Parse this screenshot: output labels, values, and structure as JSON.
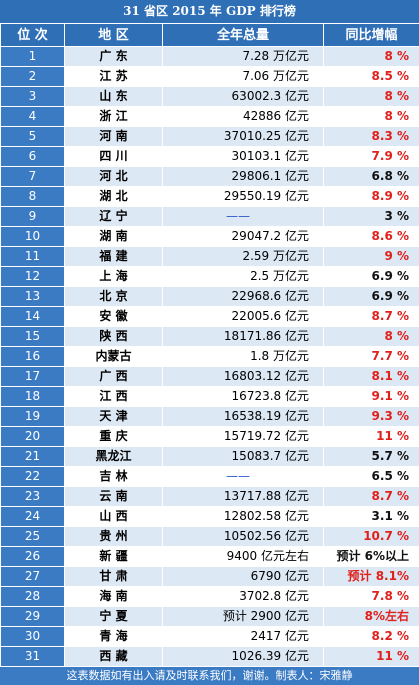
{
  "header": {
    "title": "31 省区 2015 年 GDP 排行榜",
    "columns": [
      "位 次",
      "地 区",
      "全年总量",
      "同比增幅"
    ]
  },
  "rows": [
    {
      "rank": "1",
      "region": "广 东",
      "total": "7.28 万亿元",
      "growth": "8 %",
      "growth_color": "#e0201b"
    },
    {
      "rank": "2",
      "region": "江 苏",
      "total": "7.06 万亿元",
      "growth": "8.5 %",
      "growth_color": "#e0201b"
    },
    {
      "rank": "3",
      "region": "山 东",
      "total": "63002.3 亿元",
      "growth": "8 %",
      "growth_color": "#e0201b"
    },
    {
      "rank": "4",
      "region": "浙 江",
      "total": "42886 亿元",
      "growth": "8 %",
      "growth_color": "#e0201b"
    },
    {
      "rank": "5",
      "region": "河 南",
      "total": "37010.25 亿元",
      "growth": "8.3 %",
      "growth_color": "#e0201b"
    },
    {
      "rank": "6",
      "region": "四 川",
      "total": "30103.1 亿元",
      "growth": "7.9 %",
      "growth_color": "#e0201b"
    },
    {
      "rank": "7",
      "region": "河 北",
      "total": "29806.1 亿元",
      "growth": "6.8 %",
      "growth_color": "#111111"
    },
    {
      "rank": "8",
      "region": "湖 北",
      "total": "29550.19 亿元",
      "growth": "8.9 %",
      "growth_color": "#e0201b"
    },
    {
      "rank": "9",
      "region": "辽 宁",
      "total": "——",
      "total_color": "#2b57c8",
      "growth": "3 %",
      "growth_color": "#111111"
    },
    {
      "rank": "10",
      "region": "湖 南",
      "total": "29047.2 亿元",
      "growth": "8.6 %",
      "growth_color": "#e0201b"
    },
    {
      "rank": "11",
      "region": "福 建",
      "total": "2.59 万亿元",
      "growth": "9 %",
      "growth_color": "#e0201b"
    },
    {
      "rank": "12",
      "region": "上 海",
      "total": "2.5 万亿元",
      "growth": "6.9 %",
      "growth_color": "#111111"
    },
    {
      "rank": "13",
      "region": "北 京",
      "total": "22968.6 亿元",
      "growth": "6.9 %",
      "growth_color": "#111111"
    },
    {
      "rank": "14",
      "region": "安 徽",
      "total": "22005.6 亿元",
      "growth": "8.7 %",
      "growth_color": "#e0201b"
    },
    {
      "rank": "15",
      "region": "陕 西",
      "total": "18171.86 亿元",
      "growth": "8 %",
      "growth_color": "#e0201b"
    },
    {
      "rank": "16",
      "region": "内蒙古",
      "total": "1.8 万亿元",
      "growth": "7.7 %",
      "growth_color": "#e0201b"
    },
    {
      "rank": "17",
      "region": "广 西",
      "total": "16803.12 亿元",
      "growth": "8.1 %",
      "growth_color": "#e0201b"
    },
    {
      "rank": "18",
      "region": "江 西",
      "total": "16723.8 亿元",
      "growth": "9.1 %",
      "growth_color": "#e0201b"
    },
    {
      "rank": "19",
      "region": "天 津",
      "total": "16538.19 亿元",
      "growth": "9.3 %",
      "growth_color": "#e0201b"
    },
    {
      "rank": "20",
      "region": "重 庆",
      "total": "15719.72 亿元",
      "growth": "11 %",
      "growth_color": "#e0201b"
    },
    {
      "rank": "21",
      "region": "黑龙江",
      "total": "15083.7 亿元",
      "growth": "5.7 %",
      "growth_color": "#111111"
    },
    {
      "rank": "22",
      "region": "吉 林",
      "total": "——",
      "total_color": "#2b57c8",
      "growth": "6.5 %",
      "growth_color": "#111111"
    },
    {
      "rank": "23",
      "region": "云 南",
      "total": "13717.88 亿元",
      "growth": "8.7 %",
      "growth_color": "#e0201b"
    },
    {
      "rank": "24",
      "region": "山 西",
      "total": "12802.58 亿元",
      "growth": "3.1 %",
      "growth_color": "#111111"
    },
    {
      "rank": "25",
      "region": "贵 州",
      "total": "10502.56 亿元",
      "growth": "10.7 %",
      "growth_color": "#e0201b"
    },
    {
      "rank": "26",
      "region": "新 疆",
      "total": "9400 亿元左右",
      "growth": "预计 6%以上",
      "growth_color": "#111111"
    },
    {
      "rank": "27",
      "region": "甘 肃",
      "total": "6790 亿元",
      "growth": "预计 8.1%",
      "growth_color": "#e0201b"
    },
    {
      "rank": "28",
      "region": "海 南",
      "total": "3702.8 亿元",
      "growth": "7.8 %",
      "growth_color": "#e0201b"
    },
    {
      "rank": "29",
      "region": "宁 夏",
      "total": "预计 2900 亿元",
      "growth": "8%左右",
      "growth_color": "#e0201b"
    },
    {
      "rank": "30",
      "region": "青 海",
      "total": "2417 亿元",
      "growth": "8.2 %",
      "growth_color": "#e0201b"
    },
    {
      "rank": "31",
      "region": "西 藏",
      "total": "1026.39 亿元",
      "growth": "11 %",
      "growth_color": "#e0201b"
    }
  ],
  "footer": "这表数据如有出入请及时联系我们，谢谢。制表人：宋雅静"
}
